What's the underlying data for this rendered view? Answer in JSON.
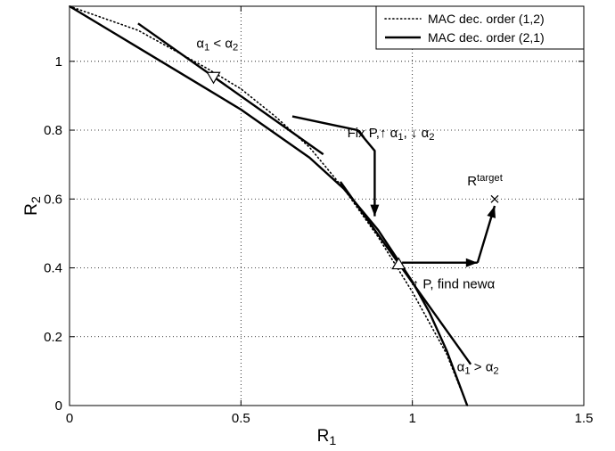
{
  "chart_data": {
    "type": "line",
    "title": "",
    "xlabel": {
      "main": "R",
      "sub": "1"
    },
    "ylabel": {
      "main": "R",
      "sub": "2"
    },
    "xlim": [
      0,
      1.5
    ],
    "ylim": [
      0,
      1.16
    ],
    "xticks": [
      0,
      0.5,
      1,
      1.5
    ],
    "xtick_labels": [
      "0",
      "0.5",
      "1",
      "1.5"
    ],
    "yticks": [
      0,
      0.2,
      0.4,
      0.6,
      0.8,
      1
    ],
    "ytick_labels": [
      "0",
      "0.2",
      "0.4",
      "0.6",
      "0.8",
      "1"
    ],
    "grid": true,
    "legend_position": "top-right",
    "series": [
      {
        "name": "MAC dec. order (1,2)",
        "style": "dotted",
        "x": [
          0,
          0.2,
          0.4,
          0.5,
          0.6,
          0.7,
          0.8,
          0.9,
          1.0,
          1.1,
          1.16
        ],
        "y": [
          1.16,
          1.09,
          0.98,
          0.92,
          0.84,
          0.75,
          0.63,
          0.49,
          0.33,
          0.15,
          0
        ]
      },
      {
        "name": "MAC dec. order (2,1)",
        "style": "solid",
        "x": [
          0,
          0.2,
          0.4,
          0.5,
          0.6,
          0.7,
          0.8,
          0.9,
          0.96,
          1.0,
          1.05,
          1.1,
          1.16
        ],
        "y": [
          1.16,
          1.04,
          0.92,
          0.86,
          0.79,
          0.72,
          0.63,
          0.51,
          0.42,
          0.36,
          0.27,
          0.16,
          0
        ]
      }
    ],
    "tangent_lines": [
      {
        "x": [
          0.2,
          0.74
        ],
        "y": [
          1.11,
          0.73
        ]
      },
      {
        "x": [
          0.79,
          1.17
        ],
        "y": [
          0.65,
          0.12
        ]
      }
    ],
    "arrows": [
      {
        "points": [
          [
            0.65,
            0.84
          ],
          [
            0.84,
            0.8
          ],
          [
            0.89,
            0.74
          ],
          [
            0.89,
            0.55
          ]
        ]
      },
      {
        "points": [
          [
            0.97,
            0.415
          ],
          [
            1.19,
            0.415
          ]
        ]
      },
      {
        "points": [
          [
            1.19,
            0.415
          ],
          [
            1.24,
            0.58
          ]
        ]
      }
    ],
    "markers": [
      {
        "symbol": "triangle-down",
        "x": 0.42,
        "y": 0.955
      },
      {
        "symbol": "triangle-up",
        "x": 0.96,
        "y": 0.41
      },
      {
        "symbol": "cross",
        "x": 1.24,
        "y": 0.6
      }
    ],
    "annotations": [
      {
        "x": 0.37,
        "y": 1.04,
        "parts": [
          [
            "α"
          ],
          [
            "1",
            "sub"
          ],
          [
            " < α"
          ],
          [
            "2",
            "sub"
          ]
        ]
      },
      {
        "x": 0.81,
        "y": 0.78,
        "parts": [
          [
            "Fix P,↑ α"
          ],
          [
            "1",
            "sub"
          ],
          [
            ", ↓ α"
          ],
          [
            "2",
            "sub"
          ]
        ]
      },
      {
        "x": 1.16,
        "y": 0.64,
        "parts": [
          [
            "R"
          ],
          [
            "target",
            "sup"
          ]
        ]
      },
      {
        "x": 1.0,
        "y": 0.34,
        "parts": [
          [
            "↑ P, find newα"
          ]
        ]
      },
      {
        "x": 1.13,
        "y": 0.1,
        "parts": [
          [
            "α"
          ],
          [
            "1",
            "sub"
          ],
          [
            " > α"
          ],
          [
            "2",
            "sub"
          ]
        ]
      }
    ]
  }
}
